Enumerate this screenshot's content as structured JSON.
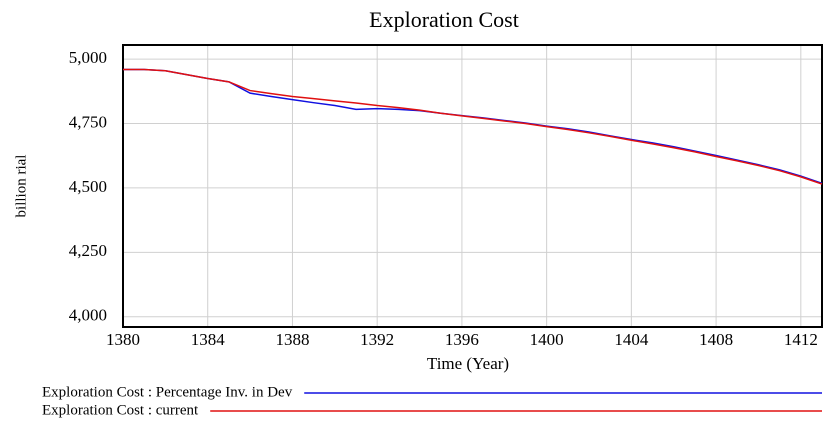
{
  "chart_data": {
    "type": "line",
    "title": "Exploration Cost",
    "x_label": "Time (Year)",
    "y_label": "billion rial",
    "x": [
      1380,
      1381,
      1382,
      1383,
      1384,
      1385,
      1386,
      1387,
      1388,
      1389,
      1390,
      1391,
      1392,
      1393,
      1394,
      1395,
      1396,
      1397,
      1398,
      1399,
      1400,
      1401,
      1402,
      1403,
      1404,
      1405,
      1406,
      1407,
      1408,
      1409,
      1410,
      1411,
      1412,
      1413
    ],
    "series": [
      {
        "name": "Exploration Cost : Percentage Inv. in Dev",
        "color": "#1010e0",
        "values": [
          4960,
          4960,
          4955,
          4940,
          4925,
          4912,
          4868,
          4855,
          4843,
          4831,
          4820,
          4805,
          4808,
          4805,
          4800,
          4790,
          4781,
          4772,
          4762,
          4752,
          4740,
          4730,
          4717,
          4702,
          4688,
          4675,
          4660,
          4643,
          4626,
          4608,
          4590,
          4570,
          4546,
          4518
        ]
      },
      {
        "name": "Exploration Cost : current",
        "color": "#e01010",
        "values": [
          4960,
          4960,
          4955,
          4940,
          4925,
          4912,
          4878,
          4866,
          4855,
          4847,
          4838,
          4830,
          4820,
          4812,
          4802,
          4790,
          4780,
          4770,
          4760,
          4750,
          4738,
          4727,
          4714,
          4700,
          4685,
          4671,
          4656,
          4640,
          4622,
          4605,
          4587,
          4567,
          4543,
          4515
        ]
      }
    ],
    "xlim": [
      1380,
      1413
    ],
    "ylim": [
      3960,
      5055
    ],
    "xticks": [
      1380,
      1384,
      1388,
      1392,
      1396,
      1400,
      1404,
      1408,
      1412
    ],
    "yticks": [
      {
        "value": 4000,
        "label": "4,000"
      },
      {
        "value": 4250,
        "label": "4,250"
      },
      {
        "value": 4500,
        "label": "4,500"
      },
      {
        "value": 4750,
        "label": "4,750"
      },
      {
        "value": 5000,
        "label": "5,000"
      }
    ],
    "grid": true
  }
}
